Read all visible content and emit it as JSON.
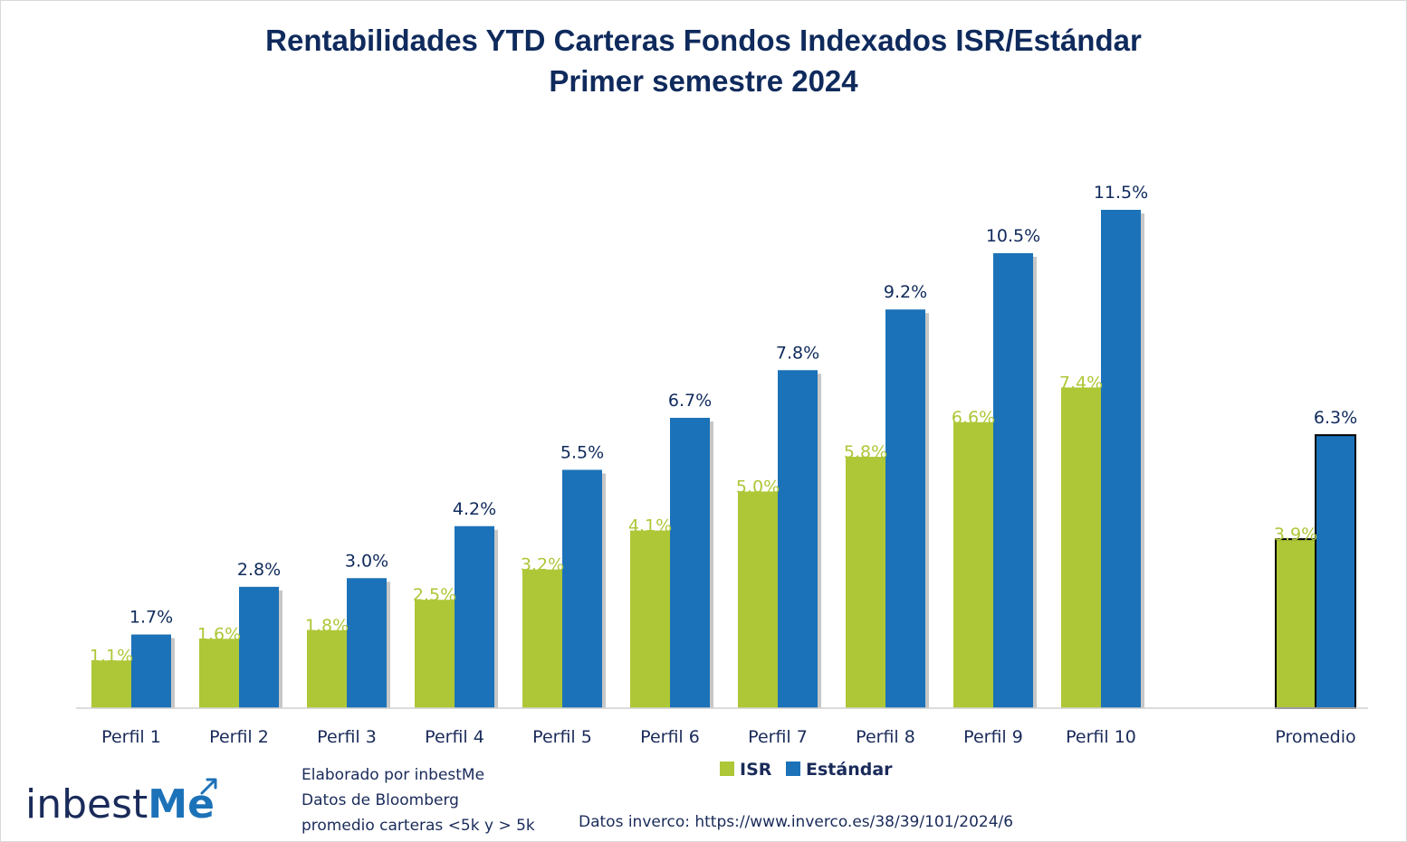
{
  "chart_data": {
    "type": "bar",
    "title": "Rentabilidades YTD Carteras Fondos Indexados ISR/Estándar",
    "subtitle": "Primer semestre 2024",
    "categories": [
      "Perfil 1",
      "Perfil 2",
      "Perfil 3",
      "Perfil 4",
      "Perfil 5",
      "Perfil 6",
      "Perfil 7",
      "Perfil 8",
      "Perfil 9",
      "Perfil 10",
      "Promedio"
    ],
    "series": [
      {
        "name": "ISR",
        "color": "#adc737",
        "values": [
          1.1,
          1.6,
          1.8,
          2.5,
          3.2,
          4.1,
          5.0,
          5.8,
          6.6,
          7.4,
          3.9
        ],
        "labels": [
          "1.1%",
          "1.6%",
          "1.8%",
          "2.5%",
          "3.2%",
          "4.1%",
          "5.0%",
          "5.8%",
          "6.6%",
          "7.4%",
          "3.9%"
        ]
      },
      {
        "name": "Estándar",
        "color": "#1c72b8",
        "values": [
          1.7,
          2.8,
          3.0,
          4.2,
          5.5,
          6.7,
          7.8,
          9.2,
          10.5,
          11.5,
          6.3
        ],
        "labels": [
          "1.7%",
          "2.8%",
          "3.0%",
          "4.2%",
          "5.5%",
          "6.7%",
          "7.8%",
          "9.2%",
          "10.5%",
          "11.5%",
          "6.3%"
        ]
      }
    ],
    "ylim": [
      0,
      12
    ],
    "grid": false,
    "legend": "bottom-center",
    "xlabel": "",
    "ylabel": "",
    "data_label_colors": {
      "ISR": "#adc737",
      "Estándar": "#0f2a5c"
    }
  },
  "footnotes": {
    "lines": [
      "Elaborado por inbestMe",
      "Datos de Bloomberg",
      "promedio carteras <5k y > 5k"
    ],
    "source": "Datos inverco: https://www.inverco.es/38/39/101/2024/6"
  },
  "logo": {
    "text_prefix": "inbest",
    "text_suffix": "Me",
    "icon": "arrow-up-right-icon",
    "accent_color": "#1c72b8"
  }
}
